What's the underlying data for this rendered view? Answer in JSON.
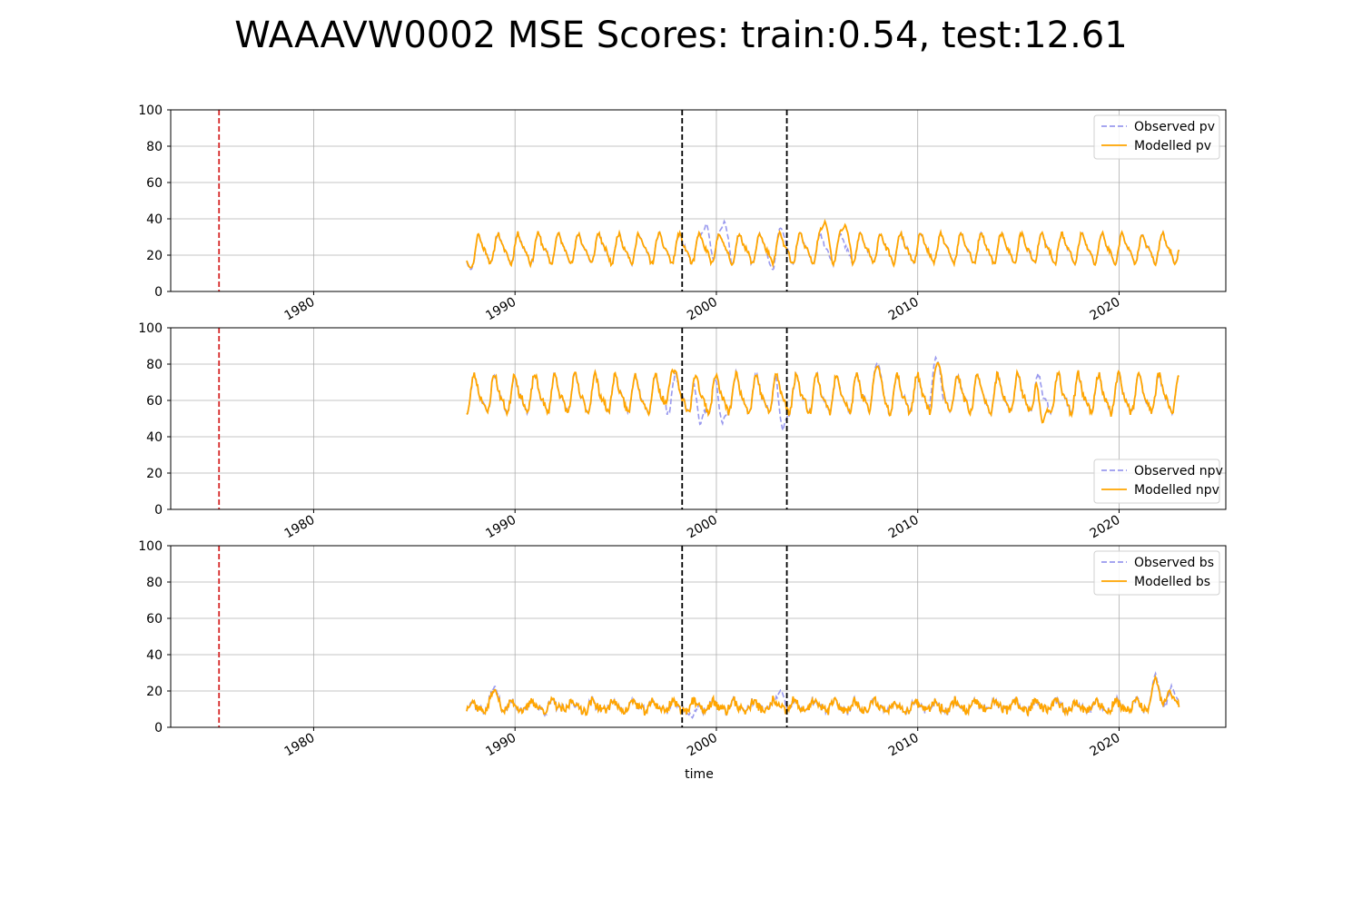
{
  "page_title": "WAAAVW0002 MSE Scores: train:0.54, test:12.61",
  "colors": {
    "observed": "#9999ee",
    "modelled": "#ffa500",
    "red_marker": "#d62728",
    "black_marker": "#000000",
    "grid": "#b0b0b0"
  },
  "chart_data": [
    {
      "type": "line",
      "title": "",
      "xlabel": "",
      "ylabel": "",
      "ylim": [
        0,
        100
      ],
      "xlim": [
        1972.9,
        2025.3
      ],
      "x_ticks": [
        "1980",
        "1990",
        "2000",
        "2010",
        "2020"
      ],
      "y_ticks": [
        "0",
        "20",
        "40",
        "60",
        "80",
        "100"
      ],
      "grid": true,
      "legend_position": "upper-right",
      "vertical_markers": [
        {
          "x": 1975.3,
          "color": "red",
          "style": "dashed"
        },
        {
          "x": 1998.3,
          "color": "black",
          "style": "dashed"
        },
        {
          "x": 2003.5,
          "color": "black",
          "style": "dashed"
        }
      ],
      "series": [
        {
          "name": "Observed pv",
          "style": "dashed",
          "kind": "observed",
          "model": {
            "start": 1987.6,
            "end": 2023.0,
            "mean": 23.5,
            "amp": 7,
            "phase": 0.2,
            "noise": 1.2,
            "seed": 11
          },
          "anomalies": [
            [
              1987.8,
              12
            ],
            [
              1999.5,
              38
            ],
            [
              2000.4,
              39
            ],
            [
              2002.8,
              12
            ],
            [
              2003.2,
              35
            ]
          ]
        },
        {
          "name": "Modelled pv",
          "style": "solid",
          "kind": "modelled",
          "model": {
            "start": 1987.6,
            "end": 2023.0,
            "mean": 23.5,
            "amp": 7,
            "phase": 0.2,
            "noise": 1.2,
            "seed": 11
          },
          "anomalies": [
            [
              1987.8,
              13
            ],
            [
              2005.4,
              39
            ],
            [
              2006.4,
              37
            ]
          ]
        }
      ]
    },
    {
      "type": "line",
      "title": "",
      "xlabel": "",
      "ylabel": "",
      "ylim": [
        0,
        100
      ],
      "xlim": [
        1972.9,
        2025.3
      ],
      "x_ticks": [
        "1980",
        "1990",
        "2000",
        "2010",
        "2020"
      ],
      "y_ticks": [
        "0",
        "20",
        "40",
        "60",
        "80",
        "100"
      ],
      "grid": true,
      "legend_position": "lower-right",
      "vertical_markers": [
        {
          "x": 1975.3,
          "color": "red",
          "style": "dashed"
        },
        {
          "x": 1998.3,
          "color": "black",
          "style": "dashed"
        },
        {
          "x": 2003.5,
          "color": "black",
          "style": "dashed"
        }
      ],
      "series": [
        {
          "name": "Observed npv",
          "style": "dashed",
          "kind": "observed",
          "model": {
            "start": 1987.6,
            "end": 2023.0,
            "mean": 63,
            "amp": 9,
            "phase": 1.4,
            "noise": 1.8,
            "seed": 23
          },
          "anomalies": [
            [
              1999.2,
              46
            ],
            [
              2000.3,
              47
            ],
            [
              2003.3,
              43
            ],
            [
              2008.0,
              81
            ],
            [
              2010.9,
              84
            ]
          ]
        },
        {
          "name": "Modelled npv",
          "style": "solid",
          "kind": "modelled",
          "model": {
            "start": 1987.6,
            "end": 2023.0,
            "mean": 63,
            "amp": 9,
            "phase": 1.4,
            "noise": 1.8,
            "seed": 23
          },
          "anomalies": [
            [
              1997.8,
              77
            ],
            [
              2008.0,
              79
            ],
            [
              2011.0,
              81
            ],
            [
              2016.2,
              47
            ]
          ]
        }
      ]
    },
    {
      "type": "line",
      "title": "",
      "xlabel": "time",
      "ylabel": "",
      "ylim": [
        0,
        100
      ],
      "xlim": [
        1972.9,
        2025.3
      ],
      "x_ticks": [
        "1980",
        "1990",
        "2000",
        "2010",
        "2020"
      ],
      "y_ticks": [
        "0",
        "20",
        "40",
        "60",
        "80",
        "100"
      ],
      "grid": true,
      "legend_position": "upper-right",
      "vertical_markers": [
        {
          "x": 1975.3,
          "color": "red",
          "style": "dashed"
        },
        {
          "x": 1998.3,
          "color": "black",
          "style": "dashed"
        },
        {
          "x": 2003.5,
          "color": "black",
          "style": "dashed"
        }
      ],
      "series": [
        {
          "name": "Observed bs",
          "style": "dashed",
          "kind": "observed",
          "model": {
            "start": 1987.6,
            "end": 2023.0,
            "mean": 11.5,
            "amp": 2.5,
            "phase": 2.3,
            "noise": 2.2,
            "seed": 37
          },
          "anomalies": [
            [
              1989.0,
              23
            ],
            [
              1998.8,
              5
            ],
            [
              2003.2,
              21
            ],
            [
              2021.8,
              30
            ],
            [
              2022.6,
              23
            ]
          ]
        },
        {
          "name": "Modelled bs",
          "style": "solid",
          "kind": "modelled",
          "model": {
            "start": 1987.6,
            "end": 2023.0,
            "mean": 11.5,
            "amp": 2.5,
            "phase": 2.3,
            "noise": 2.2,
            "seed": 37
          },
          "anomalies": [
            [
              1989.0,
              21
            ],
            [
              2021.8,
              28
            ],
            [
              2022.5,
              21
            ]
          ]
        }
      ]
    }
  ]
}
